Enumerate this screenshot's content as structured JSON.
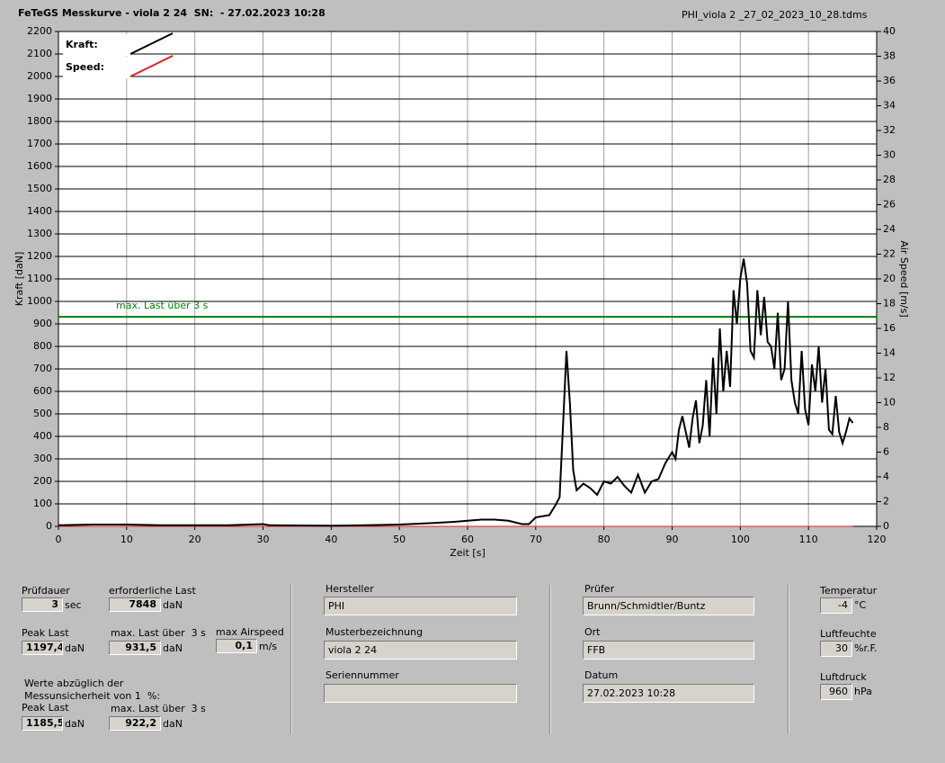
{
  "header": {
    "title": "FeTeGS Messkurve - viola 2 24  SN:  - 27.02.2023 10:28",
    "file": "PHI_viola 2 _27_02_2023_10_28.tdms"
  },
  "chart_data": {
    "type": "line",
    "x_label": "Zeit [s]",
    "y_label": "Kraft [daN]",
    "y2_label": "Air Speed [m/s]",
    "xlim": [
      0,
      120
    ],
    "xticks": [
      0,
      10,
      20,
      30,
      40,
      50,
      60,
      70,
      80,
      90,
      100,
      110,
      120
    ],
    "ylim": [
      0,
      2200
    ],
    "yticks": [
      0,
      100,
      200,
      300,
      400,
      500,
      600,
      700,
      800,
      900,
      1000,
      1100,
      1200,
      1300,
      1400,
      1500,
      1600,
      1700,
      1800,
      1900,
      2000,
      2100,
      2200
    ],
    "y2lim": [
      0,
      40
    ],
    "y2ticks": [
      0,
      2,
      4,
      6,
      8,
      10,
      12,
      14,
      16,
      18,
      20,
      22,
      24,
      26,
      28,
      30,
      32,
      34,
      36,
      38,
      40
    ],
    "grid": true,
    "series": [
      {
        "name": "Kraft:",
        "color": "#000000",
        "x": [
          0,
          5,
          10,
          15,
          20,
          25,
          30,
          31,
          40,
          45,
          50,
          55,
          58,
          60,
          62,
          64,
          66,
          68,
          69,
          70,
          71,
          72,
          73,
          73.5,
          74,
          74.5,
          75,
          75.5,
          76,
          77,
          78,
          79,
          80,
          81,
          82,
          83,
          84,
          85,
          86,
          87,
          88,
          89,
          90,
          90.5,
          91,
          91.5,
          92,
          92.5,
          93,
          93.5,
          94,
          94.5,
          95,
          95.5,
          96,
          96.5,
          97,
          97.5,
          98,
          98.5,
          99,
          99.5,
          100,
          100.5,
          101,
          101.5,
          102,
          102.5,
          103,
          103.5,
          104,
          104.5,
          105,
          105.5,
          106,
          106.5,
          107,
          107.5,
          108,
          108.5,
          109,
          109.5,
          110,
          110.5,
          111,
          111.5,
          112,
          112.5,
          113,
          113.5,
          114,
          114.5,
          115,
          115.5,
          116,
          116.5
        ],
        "values": [
          5,
          8,
          8,
          5,
          5,
          5,
          10,
          5,
          3,
          5,
          8,
          15,
          20,
          25,
          30,
          30,
          25,
          10,
          10,
          40,
          45,
          50,
          100,
          130,
          450,
          780,
          550,
          250,
          160,
          190,
          170,
          140,
          200,
          190,
          220,
          180,
          150,
          230,
          150,
          200,
          210,
          280,
          330,
          300,
          430,
          490,
          420,
          350,
          480,
          560,
          370,
          450,
          650,
          400,
          750,
          500,
          880,
          600,
          780,
          620,
          1050,
          900,
          1100,
          1190,
          1080,
          780,
          750,
          1050,
          850,
          1020,
          820,
          800,
          700,
          950,
          650,
          700,
          1000,
          650,
          550,
          500,
          780,
          520,
          450,
          720,
          600,
          800,
          550,
          700,
          430,
          410,
          580,
          420,
          370,
          420,
          480,
          460
        ]
      },
      {
        "name": "Speed:",
        "color": "#e02020",
        "axis": "y2",
        "x": [
          0,
          116.5
        ],
        "values": [
          0,
          0
        ]
      }
    ],
    "annotations": [
      {
        "text": "max. Last über  3 s",
        "value": 931.5,
        "color": "#008000"
      }
    ]
  },
  "fields": [
    {
      "label": "Prüfdauer",
      "value": "3",
      "unit": "sec"
    },
    {
      "label": "erforderliche Last",
      "value": "7848",
      "unit": "daN"
    },
    {
      "label": "Peak Last",
      "value": "1197,4",
      "unit": "daN"
    },
    {
      "label": "max. Last über  3 s",
      "value": "931,5",
      "unit": "daN"
    },
    {
      "label": "max Airspeed",
      "value": "0,1",
      "unit": "m/s"
    },
    {
      "label": "Peak Last",
      "value": "1185,5",
      "unit": "daN"
    },
    {
      "label": "max. Last über  3 s",
      "value": "922,2",
      "unit": "daN"
    },
    {
      "label": "Hersteller",
      "value": "PHI"
    },
    {
      "label": "Musterbezeichnung",
      "value": "viola 2 24"
    },
    {
      "label": "Seriennummer"
    },
    {
      "label": "Prüfer",
      "value": "Brunn/Schmidtler/Buntz"
    },
    {
      "label": "Ort",
      "value": "FFB"
    },
    {
      "label": "Datum",
      "value": "27.02.2023 10:28"
    },
    {
      "label": "Temperatur",
      "value": "-4",
      "unit": "°C"
    },
    {
      "label": "Luftfeuchte",
      "value": "30",
      "unit": "%r.F."
    },
    {
      "label": "Luftdruck",
      "value": "960",
      "unit": "hPa"
    }
  ],
  "note": [
    "Werte abzüglich der",
    "Messunsicherheit von 1  %:"
  ]
}
